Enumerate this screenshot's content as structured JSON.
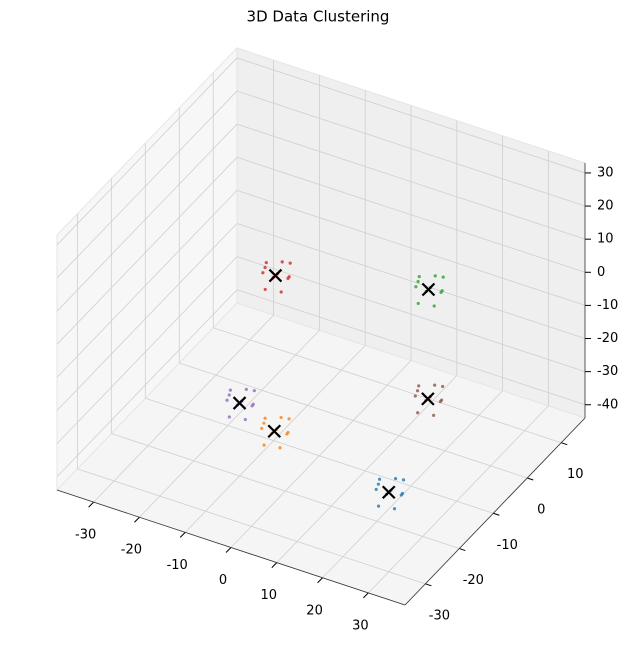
{
  "chart_data": {
    "type": "scatter3d",
    "title": "3D Data Clustering",
    "xlim": [
      -38,
      38
    ],
    "ylim": [
      -36,
      17
    ],
    "zlim": [
      -44,
      33
    ],
    "xticks": [
      -30,
      -20,
      -10,
      0,
      10,
      20,
      30
    ],
    "yticks": [
      -30,
      -20,
      -10,
      0,
      10
    ],
    "zticks": [
      -40,
      -30,
      -20,
      -10,
      0,
      10,
      20,
      30
    ],
    "grid": true,
    "series": [
      {
        "color": "#1f77b4",
        "x": [
          30,
          32,
          28,
          31,
          29,
          33,
          27,
          30,
          31,
          28,
          32,
          30
        ],
        "y": [
          -30,
          -29,
          -31,
          -32,
          -28,
          -30,
          -29,
          -33,
          -27,
          -30,
          -31,
          -28
        ],
        "z": [
          -20,
          -21,
          -19,
          -18,
          -22,
          -19,
          -20,
          -21,
          -19,
          -17,
          -23,
          -18
        ]
      },
      {
        "color": "#ff7f0e",
        "x": [
          5,
          7,
          3,
          6,
          4,
          8,
          2,
          5,
          6,
          3,
          7,
          5
        ],
        "y": [
          -30,
          -29,
          -31,
          -32,
          -28,
          -30,
          -29,
          -33,
          -27,
          -30,
          -31,
          -28
        ],
        "z": [
          -13,
          -14,
          -12,
          -11,
          -15,
          -12,
          -13,
          -14,
          -12,
          -10,
          -16,
          -11
        ]
      },
      {
        "color": "#2ca02c",
        "x": [
          9,
          11,
          7,
          10,
          8,
          12,
          6,
          9,
          10,
          7,
          11,
          9
        ],
        "y": [
          10,
          11,
          9,
          8,
          12,
          10,
          11,
          7,
          13,
          10,
          9,
          12
        ],
        "z": [
          -11,
          -12,
          -10,
          -9,
          -13,
          -10,
          -11,
          -12,
          -10,
          -8,
          -14,
          -9
        ]
      },
      {
        "color": "#d62728",
        "x": [
          -17,
          -15,
          -19,
          -16,
          -18,
          -14,
          -20,
          -17,
          -16,
          -19,
          -15,
          -17
        ],
        "y": [
          0,
          1,
          -1,
          -2,
          2,
          0,
          1,
          -3,
          3,
          0,
          -1,
          2
        ],
        "z": [
          -8,
          -9,
          -7,
          -6,
          -10,
          -7,
          -8,
          -9,
          -7,
          -5,
          -11,
          -6
        ]
      },
      {
        "color": "#9467bd",
        "x": [
          -10,
          -8,
          -12,
          -9,
          -11,
          -7,
          -13,
          -10,
          -9,
          -12,
          -8,
          -10
        ],
        "y": [
          -20,
          -19,
          -21,
          -22,
          -18,
          -20,
          -19,
          -23,
          -17,
          -20,
          -21,
          -18
        ],
        "z": [
          -22,
          -23,
          -21,
          -20,
          -24,
          -21,
          -22,
          -23,
          -21,
          -19,
          -25,
          -20
        ]
      },
      {
        "color": "#8c564b",
        "x": [
          20,
          22,
          18,
          21,
          19,
          23,
          17,
          20,
          21,
          18,
          22,
          20
        ],
        "y": [
          -5,
          -4,
          -6,
          -7,
          -3,
          -5,
          -4,
          -8,
          -2,
          -5,
          -6,
          -3
        ],
        "z": [
          -23,
          -24,
          -22,
          -21,
          -25,
          -22,
          -23,
          -24,
          -22,
          -20,
          -26,
          -21
        ]
      }
    ],
    "centroids": {
      "color": "#000000",
      "x": [
        30,
        5,
        9,
        -17,
        -10,
        20
      ],
      "y": [
        -30,
        -30,
        10,
        0,
        -20,
        -5
      ],
      "z": [
        -20,
        -13,
        -11,
        -8,
        -22,
        -23
      ]
    }
  }
}
